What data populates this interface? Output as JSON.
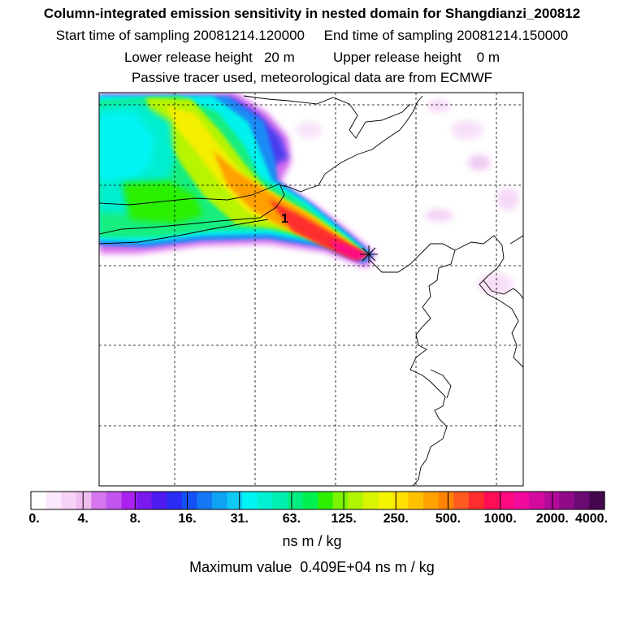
{
  "header": {
    "title": "Column-integrated emission sensitivity in nested domain for Shangdianzi_200812",
    "line2": "Start time of sampling 20081214.120000     End time of sampling 20081214.150000",
    "line3": "Lower release height   20 m          Upper release height    0 m",
    "line4": "Passive tracer used, meteorological data are from ECMWF"
  },
  "map": {
    "release_label": "1",
    "marker": "x-star-icon"
  },
  "colorbar": {
    "labels": [
      "0.",
      "4.",
      "8.",
      "16.",
      "31.",
      "63.",
      "125.",
      "250.",
      "500.",
      "1000.",
      "2000.",
      "4000."
    ],
    "colors": [
      "#ffffff",
      "#fce8fc",
      "#f7d2f7",
      "#f0bdf0",
      "#d676ee",
      "#c255ee",
      "#aa22f0",
      "#7a1aee",
      "#4e1cf0",
      "#2a2cf6",
      "#1552f6",
      "#1478f6",
      "#0ea2f4",
      "#10c8f4",
      "#00f4f4",
      "#00f0d4",
      "#00eeb0",
      "#00ee80",
      "#00f050",
      "#2cf000",
      "#7cf400",
      "#b0f400",
      "#d8f400",
      "#f4f400",
      "#ffe000",
      "#ffc000",
      "#ffa200",
      "#ff8200",
      "#ff5a20",
      "#ff2e2e",
      "#ff0e56",
      "#ff0a80",
      "#f20a9e",
      "#d40a9e",
      "#b40a9a",
      "#900a8a",
      "#6a0a72",
      "#460650"
    ]
  },
  "units": "ns m / kg",
  "max_value": "Maximum value  0.409E+04 ns m / kg"
}
